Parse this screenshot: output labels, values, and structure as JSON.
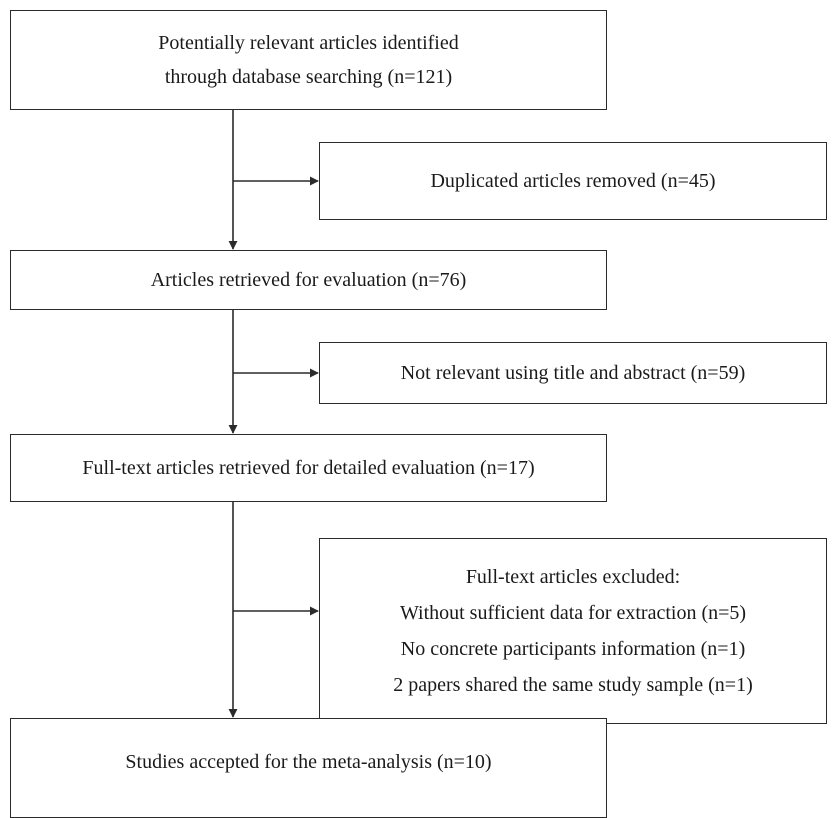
{
  "boxes": {
    "identified": [
      "Potentially relevant articles identified",
      "through database searching (n=121)"
    ],
    "duplicates": [
      "Duplicated articles removed (n=45)"
    ],
    "retrieved": [
      "Articles retrieved for evaluation (n=76)"
    ],
    "not_relevant": [
      "Not relevant using title and abstract (n=59)"
    ],
    "full_text": [
      "Full-text articles retrieved for detailed evaluation (n=17)"
    ],
    "excluded": [
      "Full-text articles excluded:",
      "Without sufficient data for extraction (n=5)",
      "No concrete participants information (n=1)",
      "2 papers shared the same study sample (n=1)"
    ],
    "accepted": [
      "Studies accepted for the meta-analysis (n=10)"
    ]
  },
  "colors": {
    "line": "#2b2b2b",
    "background": "#ffffff"
  }
}
